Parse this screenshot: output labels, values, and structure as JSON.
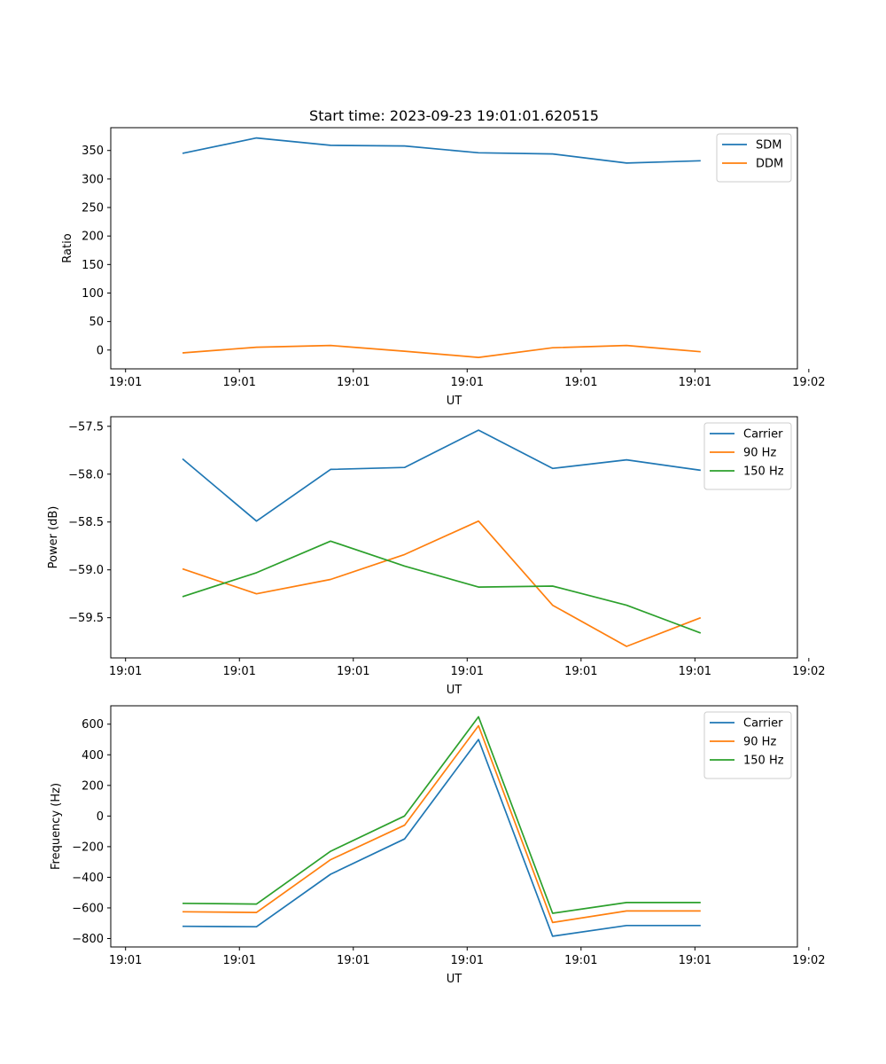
{
  "chart_data": [
    {
      "type": "line",
      "title": "Start time: 2023-09-23 19:01:01.620515",
      "xlabel": "UT",
      "ylabel": "Ratio",
      "xlim": [
        -0.13,
        5.9
      ],
      "ylim": [
        -33,
        390
      ],
      "xticks": [
        0,
        1,
        2,
        3,
        4,
        5,
        6
      ],
      "xtick_labels": [
        "19:01",
        "19:01",
        "19:01",
        "19:01",
        "19:01",
        "19:01",
        "19:02"
      ],
      "yticks": [
        0,
        50,
        100,
        150,
        200,
        250,
        300,
        350
      ],
      "ytick_labels": [
        "0",
        "50",
        "100",
        "150",
        "200",
        "250",
        "300",
        "350"
      ],
      "x": [
        0.5,
        1.15,
        1.8,
        2.45,
        3.1,
        3.75,
        4.4,
        5.05
      ],
      "legend_position": "top-right",
      "series": [
        {
          "name": "SDM",
          "color": "#1f77b4",
          "values": [
            345,
            372,
            359,
            358,
            346,
            344,
            328,
            332
          ]
        },
        {
          "name": "DDM",
          "color": "#ff7f0e",
          "values": [
            -5,
            5,
            8,
            -2,
            -13,
            4,
            8,
            -3
          ]
        }
      ]
    },
    {
      "type": "line",
      "title": "",
      "xlabel": "UT",
      "ylabel": "Power (dB)",
      "xlim": [
        -0.13,
        5.9
      ],
      "ylim": [
        -59.92,
        -57.4
      ],
      "xticks": [
        0,
        1,
        2,
        3,
        4,
        5,
        6
      ],
      "xtick_labels": [
        "19:01",
        "19:01",
        "19:01",
        "19:01",
        "19:01",
        "19:01",
        "19:02"
      ],
      "yticks": [
        -59.5,
        -59.0,
        -58.5,
        -58.0,
        -57.5
      ],
      "ytick_labels": [
        "−59.5",
        "−59.0",
        "−58.5",
        "−58.0",
        "−57.5"
      ],
      "x": [
        0.5,
        1.15,
        1.8,
        2.45,
        3.1,
        3.75,
        4.4,
        5.05
      ],
      "legend_position": "top-right",
      "series": [
        {
          "name": "Carrier",
          "color": "#1f77b4",
          "values": [
            -57.84,
            -58.49,
            -57.95,
            -57.93,
            -57.54,
            -57.94,
            -57.85,
            -57.96
          ]
        },
        {
          "name": "90 Hz",
          "color": "#ff7f0e",
          "values": [
            -58.99,
            -59.25,
            -59.1,
            -58.84,
            -58.49,
            -59.37,
            -59.8,
            -59.5
          ]
        },
        {
          "name": "150 Hz",
          "color": "#2ca02c",
          "values": [
            -59.28,
            -59.03,
            -58.7,
            -58.96,
            -59.18,
            -59.17,
            -59.37,
            -59.66
          ]
        }
      ]
    },
    {
      "type": "line",
      "title": "",
      "xlabel": "UT",
      "ylabel": "Frequency (Hz)",
      "xlim": [
        -0.13,
        5.9
      ],
      "ylim": [
        -855,
        720
      ],
      "xticks": [
        0,
        1,
        2,
        3,
        4,
        5,
        6
      ],
      "xtick_labels": [
        "19:01",
        "19:01",
        "19:01",
        "19:01",
        "19:01",
        "19:01",
        "19:02"
      ],
      "yticks": [
        -800,
        -600,
        -400,
        -200,
        0,
        200,
        400,
        600
      ],
      "ytick_labels": [
        "−800",
        "−600",
        "−400",
        "−200",
        "0",
        "200",
        "400",
        "600"
      ],
      "x": [
        0.5,
        1.15,
        1.8,
        2.45,
        3.1,
        3.75,
        4.4,
        5.05
      ],
      "legend_position": "top-right",
      "series": [
        {
          "name": "Carrier",
          "color": "#1f77b4",
          "values": [
            -720,
            -723,
            -380,
            -150,
            500,
            -785,
            -715,
            -715
          ]
        },
        {
          "name": "90 Hz",
          "color": "#ff7f0e",
          "values": [
            -625,
            -630,
            -285,
            -60,
            590,
            -695,
            -620,
            -620
          ]
        },
        {
          "name": "150 Hz",
          "color": "#2ca02c",
          "values": [
            -570,
            -575,
            -230,
            0,
            648,
            -635,
            -565,
            -565
          ]
        }
      ]
    }
  ]
}
